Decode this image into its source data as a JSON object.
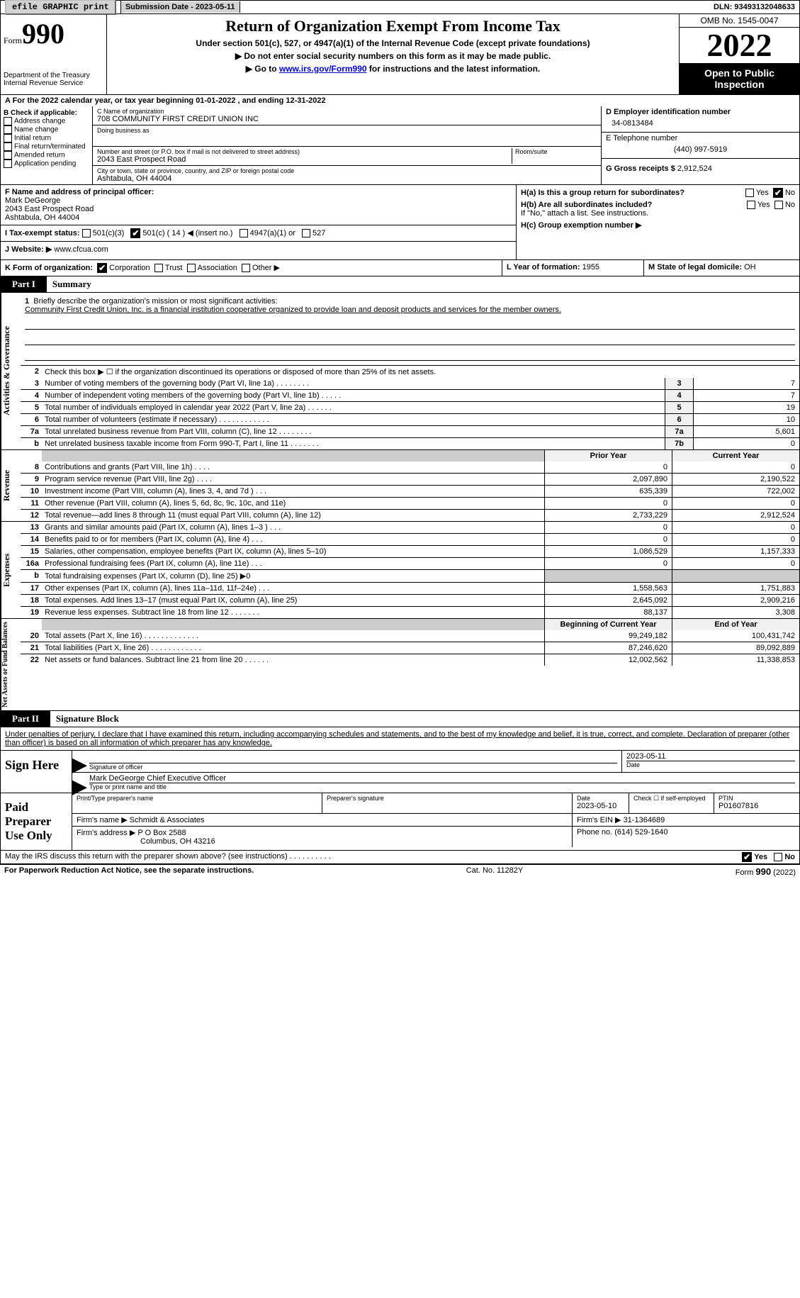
{
  "colors": {
    "text": "#000000",
    "bg": "#ffffff",
    "link": "#0000cc",
    "black_bg": "#000000",
    "white_text": "#ffffff",
    "shade": "#cccccc",
    "light_shade": "#f0f0f0",
    "btn": "#d3d3d3"
  },
  "top": {
    "efile": "efile GRAPHIC print",
    "submission": "Submission Date - 2023-05-11",
    "dln": "DLN: 93493132048633"
  },
  "header": {
    "form_word": "Form",
    "form_num": "990",
    "title": "Return of Organization Exempt From Income Tax",
    "sub": "Under section 501(c), 527, or 4947(a)(1) of the Internal Revenue Code (except private foundations)",
    "arrow1": "▶ Do not enter social security numbers on this form as it may be made public.",
    "arrow2_pre": "▶ Go to ",
    "arrow2_link": "www.irs.gov/Form990",
    "arrow2_post": " for instructions and the latest information.",
    "dept": "Department of the Treasury",
    "irs": "Internal Revenue Service",
    "omb": "OMB No. 1545-0047",
    "year": "2022",
    "otp": "Open to Public Inspection"
  },
  "row_a": "A For the 2022 calendar year, or tax year beginning 01-01-2022    , and ending 12-31-2022",
  "col_b": {
    "title": "B Check if applicable:",
    "items": [
      "Address change",
      "Name change",
      "Initial return",
      "Final return/terminated",
      "Amended return",
      "Application pending"
    ]
  },
  "col_c": {
    "name_label": "C Name of organization",
    "name": "708 COMMUNITY FIRST CREDIT UNION INC",
    "dba_label": "Doing business as",
    "street_label": "Number and street (or P.O. box if mail is not delivered to street address)",
    "room_label": "Room/suite",
    "street": "2043 East Prospect Road",
    "city_label": "City or town, state or province, country, and ZIP or foreign postal code",
    "city": "Ashtabula, OH  44004"
  },
  "col_d": {
    "ein_label": "D Employer identification number",
    "ein": "34-0813484",
    "phone_label": "E Telephone number",
    "phone": "(440) 997-5919",
    "gross_label": "G Gross receipts $",
    "gross": "2,912,524"
  },
  "row_f": {
    "f_label": "F  Name and address of principal officer:",
    "f_name": "Mark DeGeorge",
    "f_addr1": "2043 East Prospect Road",
    "f_addr2": "Ashtabula, OH  44004",
    "i_label": "I  Tax-exempt status:",
    "i_501c3": "501(c)(3)",
    "i_501c": "501(c) ( 14 ) ◀ (insert no.)",
    "i_4947": "4947(a)(1) or",
    "i_527": "527",
    "j_label": "J  Website: ▶",
    "j_site": "www.cfcua.com",
    "h_a": "H(a)  Is this a group return for subordinates?",
    "h_b": "H(b)  Are all subordinates included?",
    "h_b_note": "If \"No,\" attach a list. See instructions.",
    "h_c": "H(c)  Group exemption number ▶",
    "yes": "Yes",
    "no": "No"
  },
  "row_k": {
    "k_label": "K Form of organization:",
    "k_corp": "Corporation",
    "k_trust": "Trust",
    "k_assoc": "Association",
    "k_other": "Other ▶",
    "l_label": "L Year of formation:",
    "l_val": "1955",
    "m_label": "M State of legal domicile:",
    "m_val": "OH"
  },
  "part1": {
    "tab": "Part I",
    "title": "Summary",
    "vert1": "Activities & Governance",
    "vert2": "Revenue",
    "vert3": "Expenses",
    "vert4": "Net Assets or Fund Balances",
    "line1_label": "1",
    "line1_text": "Briefly describe the organization's mission or most significant activities:",
    "line1_mission": "Community First Credit Union, Inc. is a financial institution cooperative organized to provide loan and deposit products and services for the member owners.",
    "line2": "Check this box ▶ ☐ if the organization discontinued its operations or disposed of more than 25% of its net assets.",
    "rows_g": [
      {
        "n": "3",
        "d": "Number of voting members of the governing body (Part VI, line 1a)   .    .    .    .    .    .    .    .",
        "b": "3",
        "v": "7"
      },
      {
        "n": "4",
        "d": "Number of independent voting members of the governing body (Part VI, line 1b)   .    .    .    .    .",
        "b": "4",
        "v": "7"
      },
      {
        "n": "5",
        "d": "Total number of individuals employed in calendar year 2022 (Part V, line 2a)   .    .    .    .    .    .",
        "b": "5",
        "v": "19"
      },
      {
        "n": "6",
        "d": "Total number of volunteers (estimate if necessary)    .    .    .    .    .    .    .    .    .    .    .    .",
        "b": "6",
        "v": "10"
      },
      {
        "n": "7a",
        "d": "Total unrelated business revenue from Part VIII, column (C), line 12   .    .    .    .    .    .    .    .",
        "b": "7a",
        "v": "5,601"
      },
      {
        "n": "b",
        "d": "Net unrelated business taxable income from Form 990-T, Part I, line 11   .    .    .    .    .    .    .",
        "b": "7b",
        "v": "0"
      }
    ],
    "col_prior": "Prior Year",
    "col_curr": "Current Year",
    "rows_r": [
      {
        "n": "8",
        "d": "Contributions and grants (Part VIII, line 1h)    .    .    .    .",
        "p": "0",
        "c": "0"
      },
      {
        "n": "9",
        "d": "Program service revenue (Part VIII, line 2g)    .    .    .    .",
        "p": "2,097,890",
        "c": "2,190,522"
      },
      {
        "n": "10",
        "d": "Investment income (Part VIII, column (A), lines 3, 4, and 7d )    .    .    .",
        "p": "635,339",
        "c": "722,002"
      },
      {
        "n": "11",
        "d": "Other revenue (Part VIII, column (A), lines 5, 6d, 8c, 9c, 10c, and 11e)",
        "p": "0",
        "c": "0"
      },
      {
        "n": "12",
        "d": "Total revenue—add lines 8 through 11 (must equal Part VIII, column (A), line 12)",
        "p": "2,733,229",
        "c": "2,912,524"
      }
    ],
    "rows_e": [
      {
        "n": "13",
        "d": "Grants and similar amounts paid (Part IX, column (A), lines 1–3 )    .    .    .",
        "p": "0",
        "c": "0"
      },
      {
        "n": "14",
        "d": "Benefits paid to or for members (Part IX, column (A), line 4)    .    .    .",
        "p": "0",
        "c": "0"
      },
      {
        "n": "15",
        "d": "Salaries, other compensation, employee benefits (Part IX, column (A), lines 5–10)",
        "p": "1,086,529",
        "c": "1,157,333"
      },
      {
        "n": "16a",
        "d": "Professional fundraising fees (Part IX, column (A), line 11e)    .    .    .",
        "p": "0",
        "c": "0"
      },
      {
        "n": "b",
        "d": "Total fundraising expenses (Part IX, column (D), line 25) ▶0",
        "p": "",
        "c": "",
        "shaded": true
      },
      {
        "n": "17",
        "d": "Other expenses (Part IX, column (A), lines 11a–11d, 11f–24e)    .    .    .",
        "p": "1,558,563",
        "c": "1,751,883"
      },
      {
        "n": "18",
        "d": "Total expenses. Add lines 13–17 (must equal Part IX, column (A), line 25)",
        "p": "2,645,092",
        "c": "2,909,216"
      },
      {
        "n": "19",
        "d": "Revenue less expenses. Subtract line 18 from line 12   .    .    .    .    .    .    .",
        "p": "88,137",
        "c": "3,308"
      }
    ],
    "col_beg": "Beginning of Current Year",
    "col_end": "End of Year",
    "rows_n": [
      {
        "n": "20",
        "d": "Total assets (Part X, line 16)   .    .    .    .    .    .    .    .    .    .    .    .    .",
        "p": "99,249,182",
        "c": "100,431,742"
      },
      {
        "n": "21",
        "d": "Total liabilities (Part X, line 26)   .    .    .    .    .    .    .    .    .    .    .    .",
        "p": "87,246,620",
        "c": "89,092,889"
      },
      {
        "n": "22",
        "d": "Net assets or fund balances. Subtract line 21 from line 20   .    .    .    .    .    .",
        "p": "12,002,562",
        "c": "11,338,853"
      }
    ]
  },
  "part2": {
    "tab": "Part II",
    "title": "Signature Block",
    "decl": "Under penalties of perjury, I declare that I have examined this return, including accompanying schedules and statements, and to the best of my knowledge and belief, it is true, correct, and complete. Declaration of preparer (other than officer) is based on all information of which preparer has any knowledge.",
    "sign_here": "Sign Here",
    "sig_officer": "Signature of officer",
    "sig_date": "2023-05-11",
    "sig_name": "Mark DeGeorge  Chief Executive Officer",
    "sig_type": "Type or print name and title",
    "paid": "Paid Preparer Use Only",
    "prep_name_label": "Print/Type preparer's name",
    "prep_sig_label": "Preparer's signature",
    "prep_date_label": "Date",
    "prep_date": "2023-05-10",
    "prep_check": "Check ☐ if self-employed",
    "ptin_label": "PTIN",
    "ptin": "P01607816",
    "firm_name_label": "Firm's name    ▶",
    "firm_name": "Schmidt & Associates",
    "firm_ein_label": "Firm's EIN ▶",
    "firm_ein": "31-1364689",
    "firm_addr_label": "Firm's address ▶",
    "firm_addr1": "P O Box 2588",
    "firm_addr2": "Columbus, OH  43216",
    "firm_phone_label": "Phone no.",
    "firm_phone": "(614) 529-1640",
    "may_irs": "May the IRS discuss this return with the preparer shown above? (see instructions)   .    .    .    .    .    .    .    .    .    .",
    "paperwork": "For Paperwork Reduction Act Notice, see the separate instructions.",
    "cat": "Cat. No. 11282Y",
    "formfoot": "Form 990 (2022)"
  }
}
